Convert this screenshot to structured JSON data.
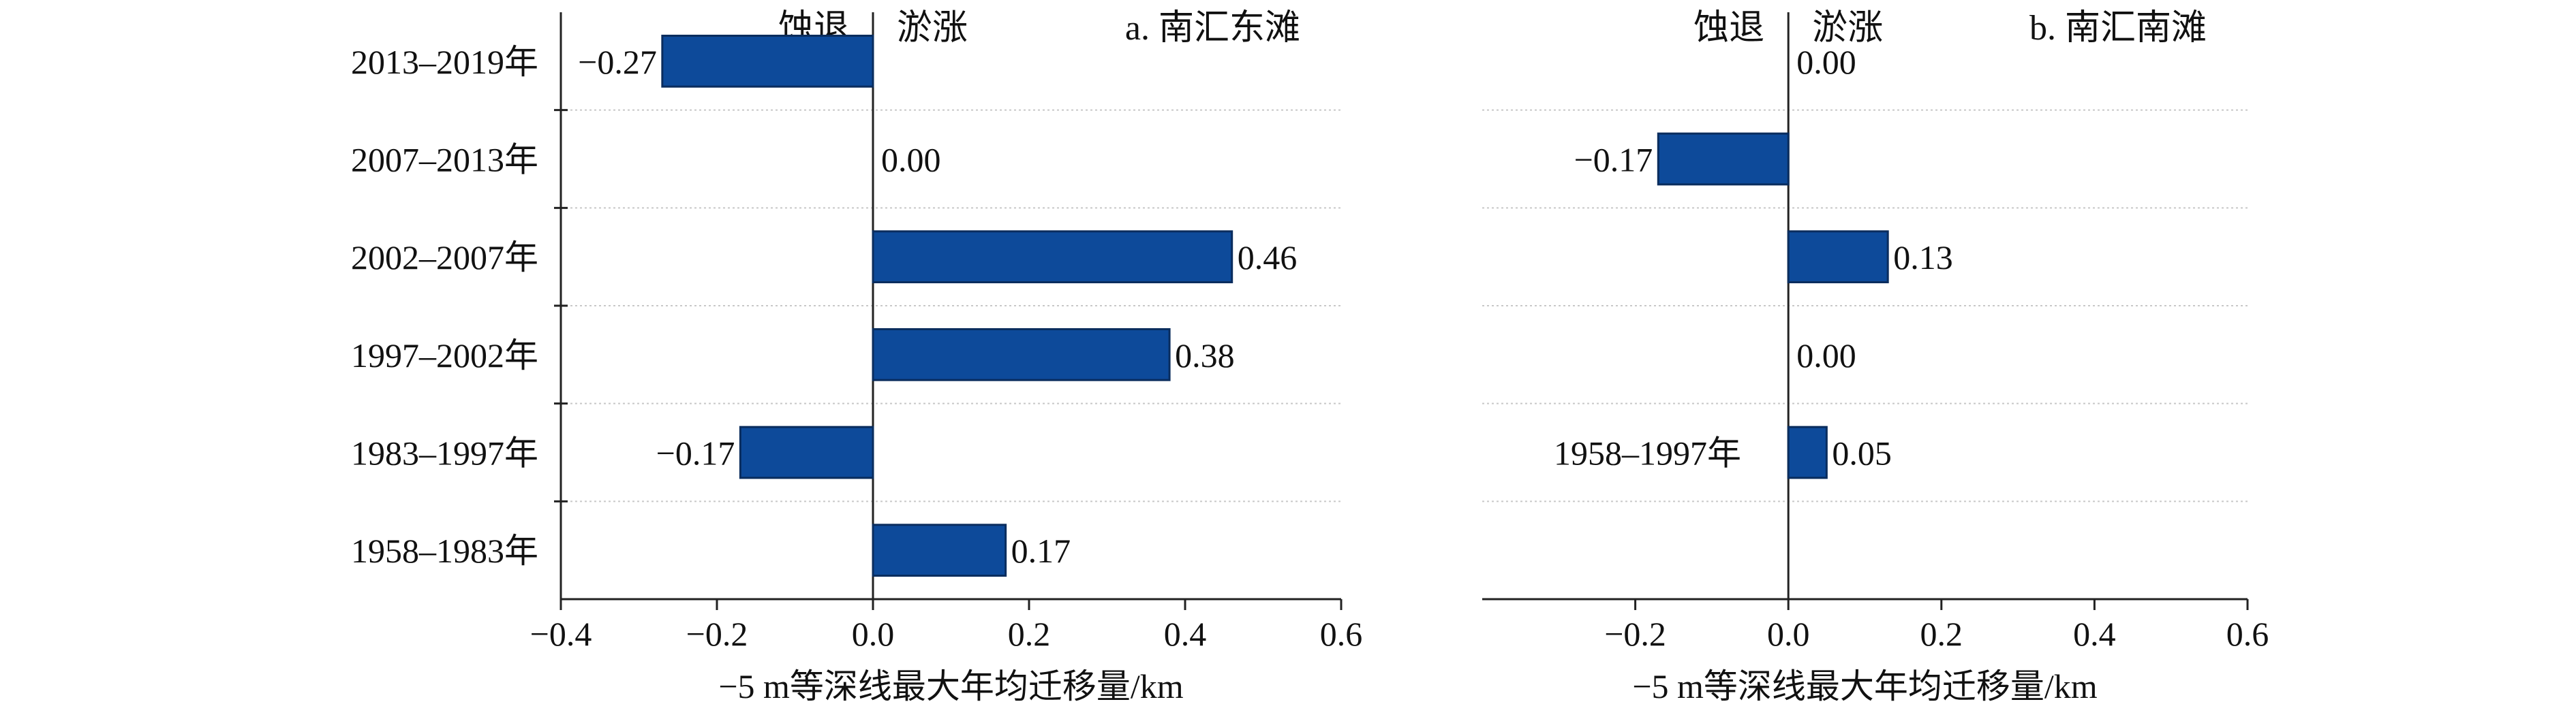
{
  "chart_data": [
    {
      "type": "bar",
      "orientation": "horizontal",
      "panel_title": "a. 南汇东滩",
      "label_left": "蚀退",
      "label_right": "淤涨",
      "categories": [
        "2013–2019年",
        "2007–2013年",
        "2002–2007年",
        "1997–2002年",
        "1983–1997年",
        "1958–1983年"
      ],
      "values": [
        -0.27,
        0.0,
        0.46,
        0.38,
        -0.17,
        0.17
      ],
      "value_labels": [
        "−0.27",
        "0.00",
        "0.46",
        "0.38",
        "−0.17",
        "0.17"
      ],
      "xlabel": "−5 m等深线最大年均迁移量/km",
      "xlim": [
        -0.4,
        0.6
      ],
      "xticks": [
        -0.4,
        -0.2,
        0.0,
        0.2,
        0.4,
        0.6
      ],
      "xtick_labels": [
        "−0.4",
        "−0.2",
        "0.0",
        "0.2",
        "0.4",
        "0.6"
      ],
      "bar_color": "#0d4a9a",
      "grid": "horizontal dotted separators"
    },
    {
      "type": "bar",
      "orientation": "horizontal",
      "panel_title": "b. 南汇南滩",
      "label_left": "蚀退",
      "label_right": "淤涨",
      "categories": [
        "",
        "",
        "",
        "",
        "1958–1997年"
      ],
      "values": [
        0.0,
        -0.17,
        0.13,
        0.0,
        0.05
      ],
      "value_labels": [
        "0.00",
        "−0.17",
        "0.13",
        "0.00",
        "0.05"
      ],
      "xlabel": "−5 m等深线最大年均迁移量/km",
      "xlim": [
        -0.4,
        0.6
      ],
      "xticks": [
        -0.2,
        0.0,
        0.2,
        0.4,
        0.6
      ],
      "xtick_labels": [
        "−0.2",
        "0.0",
        "0.2",
        "0.4",
        "0.6"
      ],
      "bar_color": "#0d4a9a",
      "grid": "horizontal dotted separators"
    }
  ]
}
